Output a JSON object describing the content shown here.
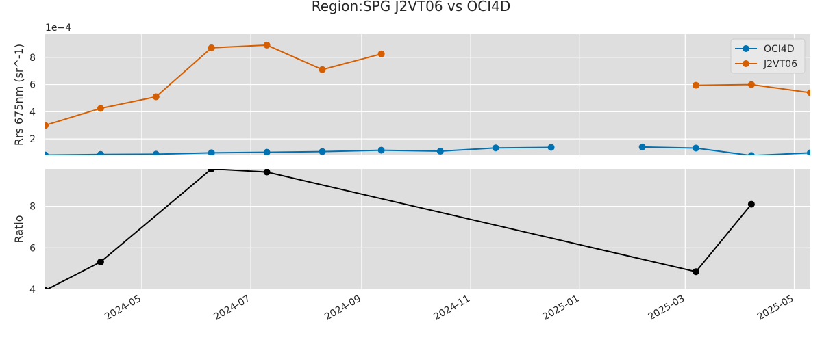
{
  "chart_data": {
    "type": "line",
    "title": "Region:SPG J2VT06 vs OCI4D",
    "x_tick_labels": [
      "2024-05",
      "2024-07",
      "2024-09",
      "2024-11",
      "2025-01",
      "2025-03",
      "2025-05"
    ],
    "x_ticks": [
      "2024-05-01",
      "2024-07-01",
      "2024-09-01",
      "2024-11-01",
      "2025-01-01",
      "2025-03-01",
      "2025-05-01"
    ],
    "xlim": [
      "2024-03-08",
      "2025-05-10"
    ],
    "grid": true,
    "panels": [
      {
        "ylabel": "Rrs 675nm (sr^-1)",
        "y_offset_label": "1e−4",
        "ylim": [
          0.8,
          9.7
        ],
        "y_ticks": [
          2,
          4,
          6,
          8
        ],
        "legend_position": "top-right",
        "series": [
          {
            "name": "OCI4D",
            "color": "#0072B2",
            "points": [
              {
                "x": "2024-03-08",
                "y": 0.82
              },
              {
                "x": "2024-04-08",
                "y": 0.86
              },
              {
                "x": "2024-05-09",
                "y": 0.88
              },
              {
                "x": "2024-06-09",
                "y": 0.98
              },
              {
                "x": "2024-07-10",
                "y": 1.02
              },
              {
                "x": "2024-08-10",
                "y": 1.07
              },
              {
                "x": "2024-09-12",
                "y": 1.17
              },
              {
                "x": "2024-10-15",
                "y": 1.1
              },
              {
                "x": "2024-11-15",
                "y": 1.34
              },
              {
                "x": "2024-12-16",
                "y": 1.38
              },
              null,
              {
                "x": "2025-02-05",
                "y": 1.41
              },
              {
                "x": "2025-03-07",
                "y": 1.33
              },
              {
                "x": "2025-04-07",
                "y": 0.78
              },
              {
                "x": "2025-05-10",
                "y": 0.98
              }
            ]
          },
          {
            "name": "J2VT06",
            "color": "#D55E00",
            "points": [
              {
                "x": "2024-03-08",
                "y": 3.0
              },
              {
                "x": "2024-04-08",
                "y": 4.25
              },
              {
                "x": "2024-05-09",
                "y": 5.1
              },
              {
                "x": "2024-06-09",
                "y": 8.7
              },
              {
                "x": "2024-07-10",
                "y": 8.9
              },
              {
                "x": "2024-08-10",
                "y": 7.1
              },
              {
                "x": "2024-09-12",
                "y": 8.25
              },
              null,
              {
                "x": "2025-03-07",
                "y": 5.95
              },
              {
                "x": "2025-04-07",
                "y": 6.0
              },
              {
                "x": "2025-05-10",
                "y": 5.4
              }
            ]
          }
        ]
      },
      {
        "ylabel": "Ratio",
        "ylim": [
          4.0,
          9.8
        ],
        "y_ticks": [
          4,
          6,
          8
        ],
        "series": [
          {
            "name": "",
            "color": "#000000",
            "points": [
              {
                "x": "2024-03-08",
                "y": 3.95
              },
              {
                "x": "2024-04-08",
                "y": 5.32
              },
              {
                "x": "2024-06-09",
                "y": 9.8
              },
              {
                "x": "2024-07-10",
                "y": 9.65
              },
              {
                "x": "2025-03-07",
                "y": 4.85
              },
              {
                "x": "2025-04-07",
                "y": 8.1
              }
            ]
          }
        ]
      }
    ]
  },
  "colors": {
    "background": "#DEDEDE",
    "grid": "#FFFFFF"
  }
}
